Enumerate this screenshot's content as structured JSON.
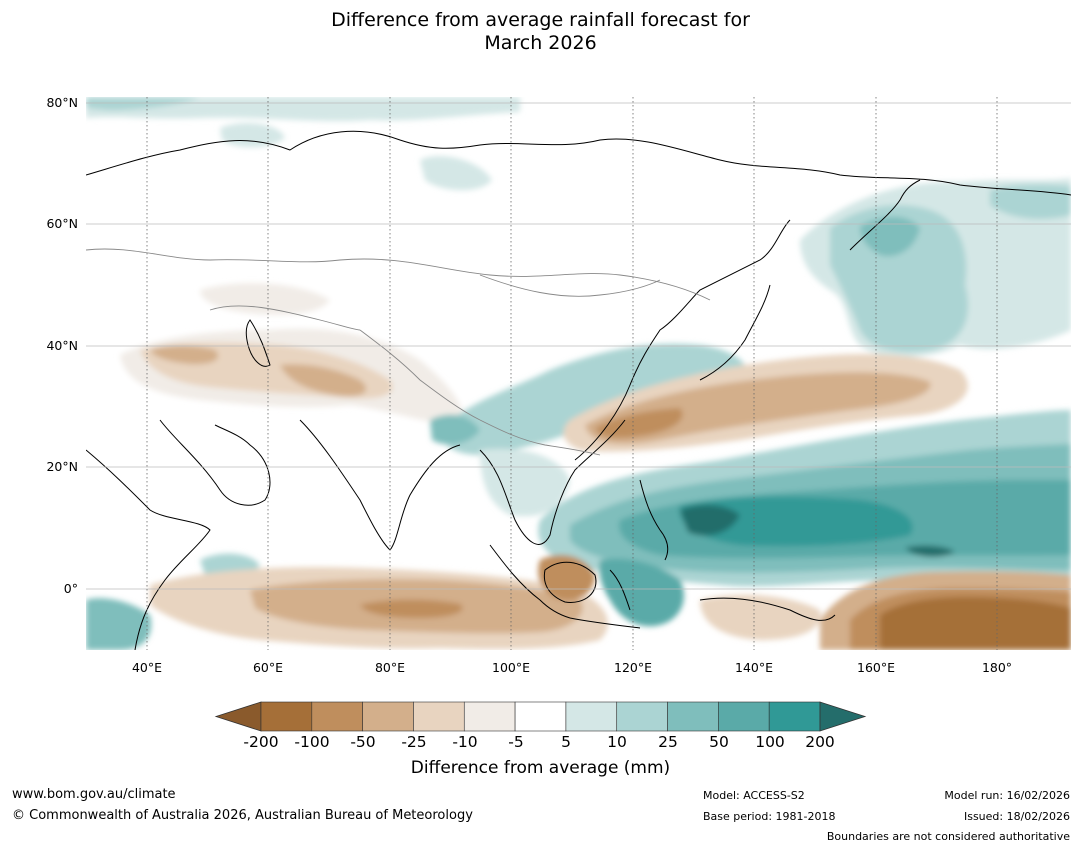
{
  "title_line1": "Difference from average rainfall forecast for",
  "title_line2": "March 2026",
  "map": {
    "lat_labels": [
      "80°N",
      "60°N",
      "40°N",
      "20°N",
      "0°"
    ],
    "lon_labels": [
      "40°E",
      "60°E",
      "80°E",
      "100°E",
      "120°E",
      "140°E",
      "160°E",
      "180°"
    ],
    "lon_range": [
      30,
      192
    ],
    "lat_range": [
      -10,
      81
    ],
    "gridlines": true,
    "anomaly_regions": [
      {
        "name": "Tropical western Pacific wet core",
        "level": "50 to 100",
        "color": "#5fa9a8"
      },
      {
        "name": "Western Pacific near 10°N 130°E",
        "level": "100 to 200",
        "color": "#2a7b77"
      },
      {
        "name": "Subtropical NW Pacific dry band",
        "level": "-50 to -25",
        "color": "#d3b08e"
      },
      {
        "name": "Equatorial Pacific east of 160°E dry",
        "level": "-200 to -100",
        "color": "#a87440"
      },
      {
        "name": "Indian Ocean south of equator dry",
        "level": "-50 to -25",
        "color": "#c8a07a"
      },
      {
        "name": "Northern NW Pacific / Kamchatka wet",
        "level": "10 to 25",
        "color": "#b3d8d6"
      },
      {
        "name": "Central Asia / Iran dry",
        "level": "-25 to -10",
        "color": "#e5d0bb"
      }
    ]
  },
  "colorbar": {
    "ticks": [
      "-200",
      "-100",
      "-50",
      "-25",
      "-10",
      "-5",
      "5",
      "10",
      "25",
      "50",
      "100",
      "200"
    ],
    "colors": [
      "#a56f38",
      "#bf8e5d",
      "#d3af8b",
      "#e8d4c0",
      "#f1ece7",
      "#ffffff",
      "#d4e7e6",
      "#abd4d3",
      "#7fbebc",
      "#5aaaa8",
      "#309996"
    ],
    "under_color": "#8a5a2c",
    "over_color": "#246d6b",
    "label": "Difference from average (mm)"
  },
  "footer": {
    "url": "www.bom.gov.au/climate",
    "copyright": "© Commonwealth of Australia 2026, Australian Bureau of Meteorology",
    "model": "Model: ACCESS-S2",
    "base_period": "Base period: 1981-2018",
    "model_run": "Model run: 16/02/2026",
    "issued": "Issued: 18/02/2026",
    "boundaries": "Boundaries are not considered authoritative"
  }
}
